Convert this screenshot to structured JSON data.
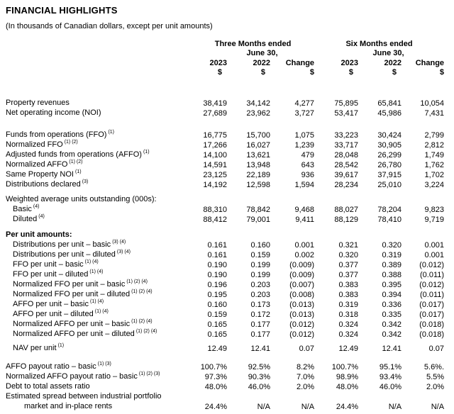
{
  "page": {
    "title": "FINANCIAL HIGHLIGHTS",
    "subtitle": "(In thousands of Canadian dollars, except per unit amounts)"
  },
  "table": {
    "col_groups": [
      {
        "line1": "Three Months ended",
        "line2": "June 30,"
      },
      {
        "line1": "Six Months ended",
        "line2": "June 30,"
      }
    ],
    "year_headers": [
      "2023",
      "2022",
      "Change",
      "2023",
      "2022",
      "Change"
    ],
    "currency_symbols": [
      "$",
      "$",
      "$",
      "$",
      "$",
      "$"
    ],
    "rows": [
      {
        "t": "sp",
        "h": 30
      },
      {
        "label": "Property revenues",
        "values": [
          "38,419",
          "34,142",
          "4,277",
          "75,895",
          "65,841",
          "10,054"
        ]
      },
      {
        "label": "Net operating income (NOI)",
        "values": [
          "27,689",
          "23,962",
          "3,727",
          "53,417",
          "45,986",
          "7,431"
        ]
      },
      {
        "t": "sp",
        "h": 17
      },
      {
        "label": "Funds from operations (FFO)",
        "sup": "(1)",
        "values": [
          "16,775",
          "15,700",
          "1,075",
          "33,223",
          "30,424",
          "2,799"
        ]
      },
      {
        "label": "Normalized FFO",
        "sup": "(1) (2)",
        "values": [
          "17,266",
          "16,027",
          "1,239",
          "33,717",
          "30,905",
          "2,812"
        ]
      },
      {
        "label": "Adjusted funds from operations (AFFO)",
        "sup": "(1)",
        "values": [
          "14,100",
          "13,621",
          "479",
          "28,048",
          "26,299",
          "1,749"
        ]
      },
      {
        "label": "Normalized AFFO",
        "sup": "(1) (2)",
        "values": [
          "14,591",
          "13,948",
          "643",
          "28,542",
          "26,780",
          "1,762"
        ]
      },
      {
        "label": "Same Property NOI",
        "sup": "(1)",
        "values": [
          "23,125",
          "22,189",
          "936",
          "39,617",
          "37,915",
          "1,702"
        ]
      },
      {
        "label": "Distributions declared",
        "sup": "(3)",
        "values": [
          "14,192",
          "12,598",
          "1,594",
          "28,234",
          "25,010",
          "3,224"
        ]
      },
      {
        "t": "sp",
        "h": 7
      },
      {
        "label": "Weighted average units outstanding (000s):"
      },
      {
        "label": "Basic",
        "sup": "(4)",
        "indent": 1,
        "values": [
          "88,310",
          "78,842",
          "9,468",
          "88,027",
          "78,204",
          "9,823"
        ]
      },
      {
        "label": "Diluted",
        "sup": "(4)",
        "indent": 1,
        "values": [
          "88,412",
          "79,001",
          "9,411",
          "88,129",
          "78,410",
          "9,719"
        ]
      },
      {
        "t": "sp",
        "h": 8
      },
      {
        "label": "Per unit amounts:",
        "bold": 1
      },
      {
        "label": "Distributions per unit – basic",
        "sup": "(3) (4)",
        "indent": 1,
        "values": [
          "0.161",
          "0.160",
          "0.001",
          "0.321",
          "0.320",
          "0.001"
        ]
      },
      {
        "label": "Distributions per unit – diluted",
        "sup": "(3) (4)",
        "indent": 1,
        "values": [
          "0.161",
          "0.159",
          "0.002",
          "0.320",
          "0.319",
          "0.001"
        ]
      },
      {
        "label": "FFO per unit – basic",
        "sup": "(1) (4)",
        "indent": 1,
        "values": [
          "0.190",
          "0.199",
          "(0.009)",
          "0.377",
          "0.389",
          "(0.012)"
        ]
      },
      {
        "label": "FFO per unit – diluted",
        "sup": "(1) (4)",
        "indent": 1,
        "values": [
          "0.190",
          "0.199",
          "(0.009)",
          "0.377",
          "0.388",
          "(0.011)"
        ]
      },
      {
        "label": "Normalized FFO per unit – basic",
        "sup": "(1) (2) (4)",
        "indent": 1,
        "values": [
          "0.196",
          "0.203",
          "(0.007)",
          "0.383",
          "0.395",
          "(0.012)"
        ]
      },
      {
        "label": "Normalized FFO per unit – diluted",
        "sup": "(1) (2) (4)",
        "indent": 1,
        "values": [
          "0.195",
          "0.203",
          "(0.008)",
          "0.383",
          "0.394",
          "(0.011)"
        ]
      },
      {
        "label": "AFFO per unit – basic",
        "sup": "(1) (4)",
        "indent": 1,
        "values": [
          "0.160",
          "0.173",
          "(0.013)",
          "0.319",
          "0.336",
          "(0.017)"
        ]
      },
      {
        "label": "AFFO per unit – diluted",
        "sup": "(1) (4)",
        "indent": 1,
        "values": [
          "0.159",
          "0.172",
          "(0.013)",
          "0.318",
          "0.335",
          "(0.017)"
        ]
      },
      {
        "label": "Normalized AFFO per unit – basic",
        "sup": "(1) (2) (4)",
        "indent": 1,
        "values": [
          "0.165",
          "0.177",
          "(0.012)",
          "0.324",
          "0.342",
          "(0.018)"
        ]
      },
      {
        "label": "Normalized AFFO per unit – diluted",
        "sup": "(1) (2) (4)",
        "indent": 1,
        "values": [
          "0.165",
          "0.177",
          "(0.012)",
          "0.324",
          "0.342",
          "(0.018)"
        ]
      },
      {
        "t": "sp",
        "h": 6
      },
      {
        "label": "NAV per unit",
        "sup": "(1)",
        "indent": 1,
        "values": [
          "12.49",
          "12.41",
          "0.07",
          "12.49",
          "12.41",
          "0.07"
        ]
      },
      {
        "t": "sp",
        "h": 12
      },
      {
        "label": "AFFO payout ratio – basic",
        "sup": "(1) (3)",
        "values": [
          "100.7%",
          "92.5%",
          "8.2%",
          "100.7%",
          "95.1%",
          "5.6%."
        ]
      },
      {
        "label": "Normalized AFFO payout ratio – basic",
        "sup": "(1) (2) (3)",
        "values": [
          "97.3%",
          "90.3%",
          "7.0%",
          "98.9%",
          "93.4%",
          "5.5%"
        ]
      },
      {
        "label": "Debt to total assets ratio",
        "values": [
          "48.0%",
          "46.0%",
          "2.0%",
          "48.0%",
          "46.0%",
          "2.0%"
        ]
      },
      {
        "label": "Estimated spread between industrial portfolio",
        "label2": "market and in-place rents",
        "values": [
          "24.4%",
          "N/A",
          "N/A",
          "24.4%",
          "N/A",
          "N/A"
        ]
      }
    ]
  }
}
